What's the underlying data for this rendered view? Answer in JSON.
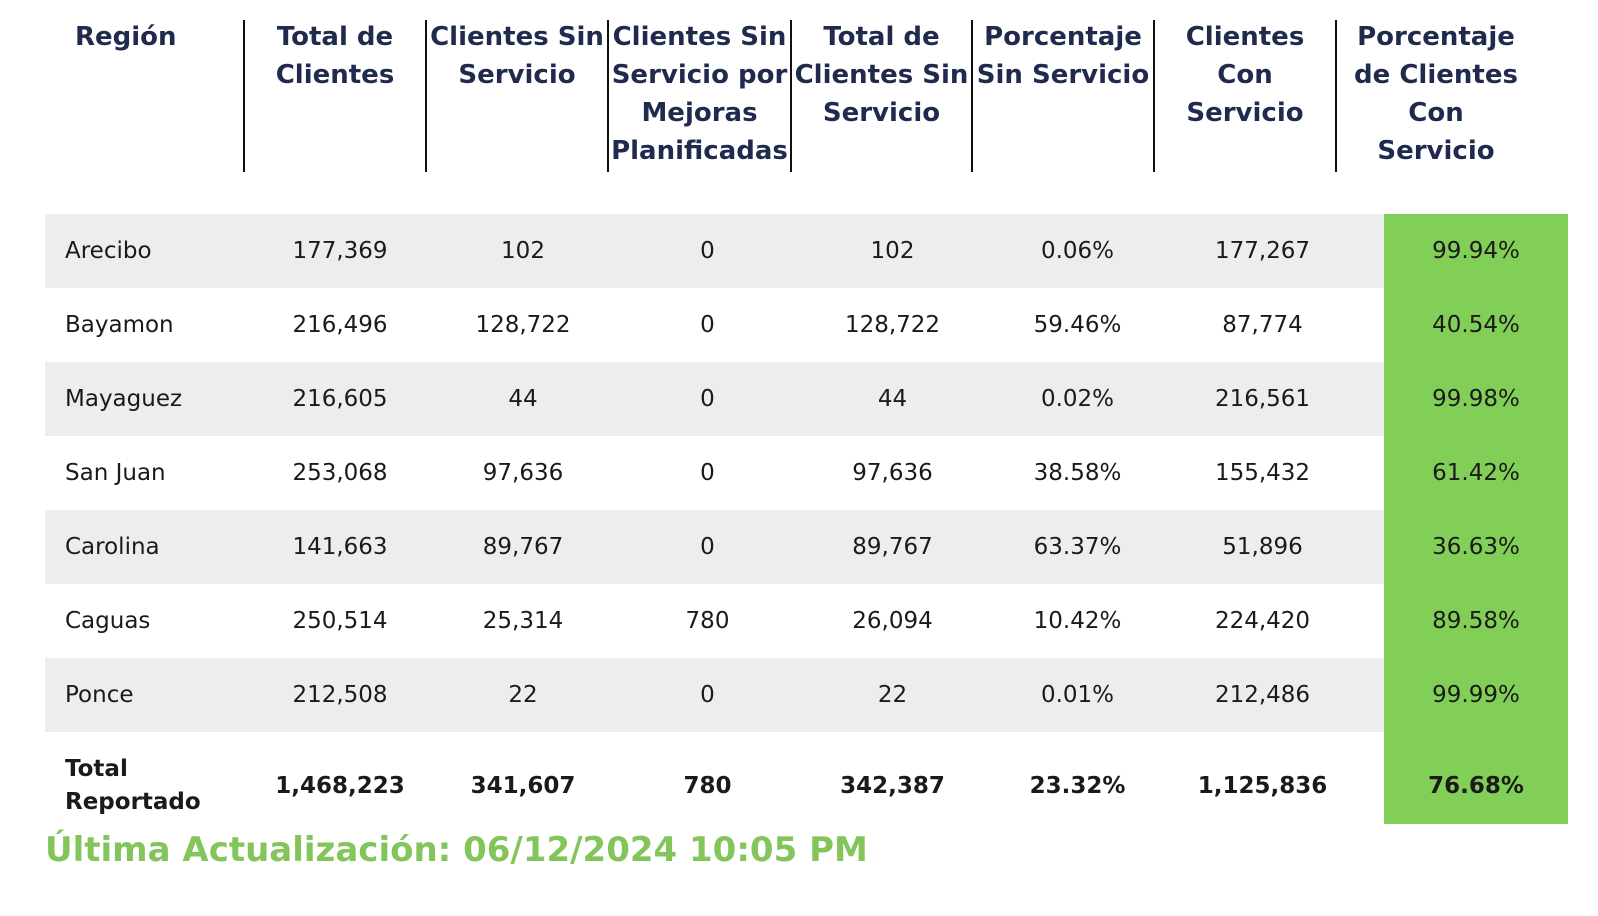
{
  "table": {
    "headers": [
      "Región",
      "Total de\nClientes",
      "Clientes Sin\nServicio",
      "Clientes Sin\nServicio por\nMejoras\nPlanificadas",
      "Total de\nClientes Sin\nServicio",
      "Porcentaje\nSin Servicio",
      "Clientes\nCon\nServicio",
      "Porcentaje\nde Clientes\nCon\nServicio"
    ],
    "rows": [
      [
        "Arecibo",
        "177,369",
        "102",
        "0",
        "102",
        "0.06%",
        "177,267",
        "99.94%"
      ],
      [
        "Bayamon",
        "216,496",
        "128,722",
        "0",
        "128,722",
        "59.46%",
        "87,774",
        "40.54%"
      ],
      [
        "Mayaguez",
        "216,605",
        "44",
        "0",
        "44",
        "0.02%",
        "216,561",
        "99.98%"
      ],
      [
        "San Juan",
        "253,068",
        "97,636",
        "0",
        "97,636",
        "38.58%",
        "155,432",
        "61.42%"
      ],
      [
        "Carolina",
        "141,663",
        "89,767",
        "0",
        "89,767",
        "63.37%",
        "51,896",
        "36.63%"
      ],
      [
        "Caguas",
        "250,514",
        "25,314",
        "780",
        "26,094",
        "10.42%",
        "224,420",
        "89.58%"
      ],
      [
        "Ponce",
        "212,508",
        "22",
        "0",
        "22",
        "0.01%",
        "212,486",
        "99.99%"
      ]
    ],
    "total": [
      "Total\nReportado",
      "1,468,223",
      "341,607",
      "780",
      "342,387",
      "23.32%",
      "1,125,836",
      "76.68%"
    ]
  },
  "footer": {
    "last_update": "Última Actualización: 06/12/2024 10:05 PM"
  },
  "colors": {
    "header_text": "#1f2a4d",
    "row_shade": "#eceeee",
    "highlight_column": "#82cf57",
    "footer_text": "#84c55b"
  }
}
